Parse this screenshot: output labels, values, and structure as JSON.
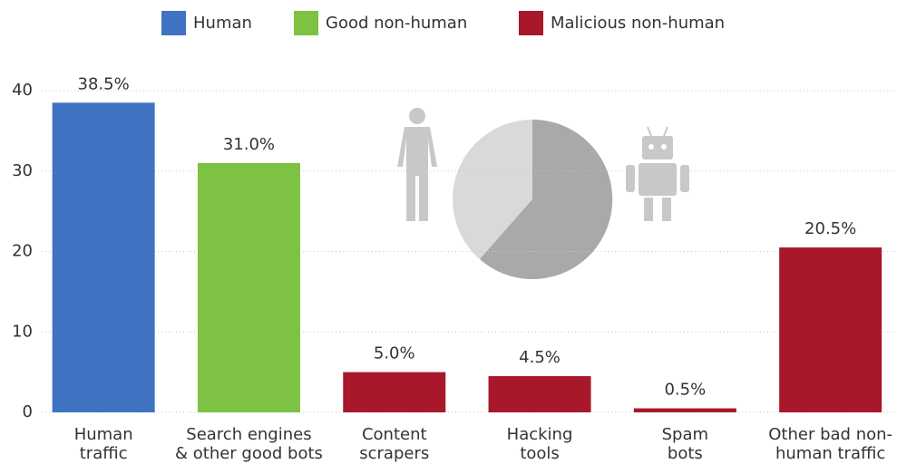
{
  "chart_data": {
    "type": "bar",
    "categories": [
      [
        "Human",
        "traffic"
      ],
      [
        "Search engines",
        "& other good bots"
      ],
      [
        "Content",
        "scrapers"
      ],
      [
        "Hacking",
        "tools"
      ],
      [
        "Spam",
        "bots"
      ],
      [
        "Other bad non-",
        "human traffic"
      ]
    ],
    "series": [
      {
        "name": "Human",
        "color": "#3f73c1",
        "values": [
          38.5,
          null,
          null,
          null,
          null,
          null
        ],
        "value_labels": [
          "38.5%",
          null,
          null,
          null,
          null,
          null
        ]
      },
      {
        "name": "Good non-human",
        "color": "#7dc242",
        "values": [
          null,
          31.0,
          null,
          null,
          null,
          null
        ],
        "value_labels": [
          null,
          "31.0%",
          null,
          null,
          null,
          null
        ]
      },
      {
        "name": "Malicious non-human",
        "color": "#a8172a",
        "values": [
          null,
          null,
          5.0,
          4.5,
          0.5,
          20.5
        ],
        "value_labels": [
          null,
          null,
          "5.0%",
          "4.5%",
          "0.5%",
          "20.5%"
        ]
      }
    ],
    "ylim": [
      0,
      40
    ],
    "yticks": [
      0,
      10,
      20,
      30,
      40
    ],
    "grid": true,
    "legend": "top"
  }
}
